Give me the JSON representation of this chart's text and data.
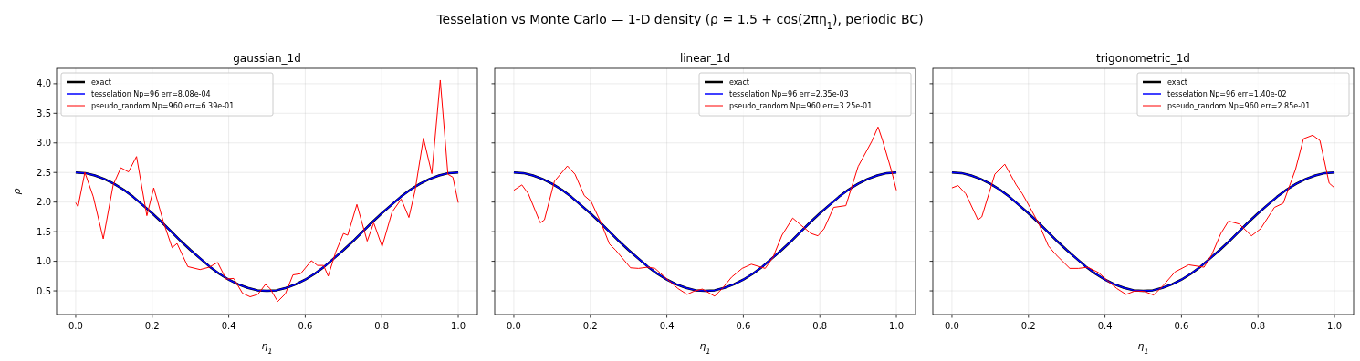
{
  "chart_data": [
    {
      "type": "line",
      "title": "gaussian_1d",
      "annotations": [
        "Tesselation vs Monte Carlo — 1-D density  (ρ = 1.5 + cos(2πη$_{1}$), periodic BC)"
      ],
      "xlabel": "η$_{1}$",
      "ylabel": "ρ",
      "xlim": [
        -0.05,
        1.05
      ],
      "ylim": [
        0.1,
        4.26
      ],
      "xticks": [
        {
          "value": 0,
          "label": "0.0"
        },
        {
          "value": 0.2,
          "label": "0.2"
        },
        {
          "value": 0.4,
          "label": "0.4"
        },
        {
          "value": 0.6,
          "label": "0.6"
        },
        {
          "value": 0.8,
          "label": "0.8"
        },
        {
          "value": 1,
          "label": "1.0"
        }
      ],
      "yticks": [
        0.5,
        {
          "value": 1,
          "label": "1.0"
        },
        1.5,
        {
          "value": 2,
          "label": "2.0"
        },
        2.5,
        {
          "value": 3,
          "label": "3.0"
        },
        3.5,
        {
          "value": 4,
          "label": "4.0"
        }
      ],
      "grid": true,
      "legend": "top left",
      "series": [
        {
          "name": "exact",
          "color": "#000000",
          "x": [
            0,
            0.025,
            0.05,
            0.075,
            0.1,
            0.125,
            0.15,
            0.175,
            0.2,
            0.225,
            0.25,
            0.275,
            0.3,
            0.325,
            0.35,
            0.375,
            0.4,
            0.425,
            0.45,
            0.475,
            0.5,
            0.525,
            0.55,
            0.575,
            0.6,
            0.625,
            0.65,
            0.675,
            0.7,
            0.725,
            0.75,
            0.775,
            0.8,
            0.825,
            0.85,
            0.875,
            0.9,
            0.925,
            0.95,
            0.975,
            1
          ],
          "values": [
            2.5,
            2.49,
            2.45,
            2.39,
            2.31,
            2.21,
            2.09,
            1.95,
            1.81,
            1.66,
            1.5,
            1.34,
            1.19,
            1.05,
            0.91,
            0.79,
            0.69,
            0.61,
            0.55,
            0.51,
            0.5,
            0.51,
            0.55,
            0.61,
            0.69,
            0.79,
            0.91,
            1.05,
            1.19,
            1.34,
            1.5,
            1.66,
            1.81,
            1.95,
            2.09,
            2.21,
            2.31,
            2.39,
            2.45,
            2.49,
            2.5
          ]
        },
        {
          "name": "tesselation  Np=96  err=8.08e-04",
          "color": "#0000ff",
          "x": [
            0,
            0.025,
            0.05,
            0.075,
            0.1,
            0.125,
            0.15,
            0.175,
            0.2,
            0.225,
            0.25,
            0.275,
            0.3,
            0.325,
            0.35,
            0.375,
            0.4,
            0.425,
            0.45,
            0.475,
            0.5,
            0.525,
            0.55,
            0.575,
            0.6,
            0.625,
            0.65,
            0.675,
            0.7,
            0.725,
            0.75,
            0.775,
            0.8,
            0.825,
            0.85,
            0.875,
            0.9,
            0.925,
            0.95,
            0.975,
            1
          ],
          "values": [
            2.5,
            2.49,
            2.45,
            2.39,
            2.31,
            2.21,
            2.09,
            1.95,
            1.81,
            1.66,
            1.5,
            1.34,
            1.19,
            1.05,
            0.91,
            0.79,
            0.69,
            0.61,
            0.55,
            0.51,
            0.5,
            0.51,
            0.55,
            0.61,
            0.69,
            0.79,
            0.91,
            1.05,
            1.19,
            1.34,
            1.5,
            1.66,
            1.81,
            1.95,
            2.09,
            2.21,
            2.31,
            2.39,
            2.45,
            2.49,
            2.5
          ]
        },
        {
          "name": "pseudo_random  Np=960  err=6.39e-01",
          "color": "#ff0000",
          "x": [
            0,
            0.006,
            0.024,
            0.046,
            0.072,
            0.098,
            0.118,
            0.138,
            0.159,
            0.186,
            0.204,
            0.23,
            0.252,
            0.265,
            0.293,
            0.325,
            0.349,
            0.371,
            0.393,
            0.413,
            0.436,
            0.456,
            0.476,
            0.496,
            0.508,
            0.528,
            0.548,
            0.568,
            0.588,
            0.616,
            0.632,
            0.648,
            0.66,
            0.68,
            0.7,
            0.711,
            0.735,
            0.762,
            0.779,
            0.801,
            0.827,
            0.851,
            0.871,
            0.887,
            0.909,
            0.931,
            0.953,
            0.973,
            0.986,
            1
          ],
          "values": [
            1.99,
            1.92,
            2.5,
            2.09,
            1.38,
            2.29,
            2.58,
            2.51,
            2.77,
            1.77,
            2.24,
            1.65,
            1.23,
            1.3,
            0.91,
            0.86,
            0.9,
            0.98,
            0.7,
            0.71,
            0.46,
            0.4,
            0.44,
            0.61,
            0.54,
            0.32,
            0.45,
            0.77,
            0.79,
            1.01,
            0.93,
            0.93,
            0.75,
            1.16,
            1.47,
            1.44,
            1.96,
            1.34,
            1.65,
            1.25,
            1.83,
            2.05,
            1.74,
            2.19,
            3.08,
            2.48,
            4.06,
            2.47,
            2.42,
            1.99
          ]
        }
      ]
    },
    {
      "type": "line",
      "title": "linear_1d",
      "xlabel": "η$_{1}$",
      "xlim": [
        -0.05,
        1.05
      ],
      "ylim": [
        0.1,
        4.26
      ],
      "tick_labels": "x",
      "xticks": [
        {
          "value": 0,
          "label": "0.0"
        },
        {
          "value": 0.2,
          "label": "0.2"
        },
        {
          "value": 0.4,
          "label": "0.4"
        },
        {
          "value": 0.6,
          "label": "0.6"
        },
        {
          "value": 0.8,
          "label": "0.8"
        },
        {
          "value": 1,
          "label": "1.0"
        }
      ],
      "yticks": [
        {
          "value": 0.5,
          "label": null
        },
        {
          "value": 1,
          "label": null
        },
        {
          "value": 1.5,
          "label": null
        },
        {
          "value": 2,
          "label": null
        },
        {
          "value": 2.5,
          "label": null
        },
        {
          "value": 3,
          "label": null
        },
        {
          "value": 3.5,
          "label": null
        },
        {
          "value": 4,
          "label": null
        }
      ],
      "grid": true,
      "legend": "top right",
      "series": [
        {
          "name": "exact",
          "color": "#000000",
          "x": [
            0,
            0.025,
            0.05,
            0.075,
            0.1,
            0.125,
            0.15,
            0.175,
            0.2,
            0.225,
            0.25,
            0.275,
            0.3,
            0.325,
            0.35,
            0.375,
            0.4,
            0.425,
            0.45,
            0.475,
            0.5,
            0.525,
            0.55,
            0.575,
            0.6,
            0.625,
            0.65,
            0.675,
            0.7,
            0.725,
            0.75,
            0.775,
            0.8,
            0.825,
            0.85,
            0.875,
            0.9,
            0.925,
            0.95,
            0.975,
            1
          ],
          "values": [
            2.5,
            2.49,
            2.45,
            2.39,
            2.31,
            2.21,
            2.09,
            1.95,
            1.81,
            1.66,
            1.5,
            1.34,
            1.19,
            1.05,
            0.91,
            0.79,
            0.69,
            0.61,
            0.55,
            0.51,
            0.5,
            0.51,
            0.55,
            0.61,
            0.69,
            0.79,
            0.91,
            1.05,
            1.19,
            1.34,
            1.5,
            1.66,
            1.81,
            1.95,
            2.09,
            2.21,
            2.31,
            2.39,
            2.45,
            2.49,
            2.5
          ]
        },
        {
          "name": "tesselation  Np=96  err=2.35e-03",
          "color": "#0000ff",
          "x": [
            0,
            0.025,
            0.05,
            0.075,
            0.1,
            0.125,
            0.15,
            0.175,
            0.2,
            0.225,
            0.25,
            0.275,
            0.3,
            0.325,
            0.35,
            0.375,
            0.4,
            0.425,
            0.45,
            0.475,
            0.5,
            0.525,
            0.55,
            0.575,
            0.6,
            0.625,
            0.65,
            0.675,
            0.7,
            0.725,
            0.75,
            0.775,
            0.8,
            0.825,
            0.85,
            0.875,
            0.9,
            0.925,
            0.95,
            0.975,
            1
          ],
          "values": [
            2.5,
            2.49,
            2.45,
            2.39,
            2.31,
            2.21,
            2.09,
            1.95,
            1.81,
            1.66,
            1.5,
            1.34,
            1.19,
            1.05,
            0.91,
            0.79,
            0.69,
            0.61,
            0.55,
            0.51,
            0.5,
            0.51,
            0.55,
            0.61,
            0.69,
            0.79,
            0.91,
            1.05,
            1.19,
            1.34,
            1.5,
            1.66,
            1.81,
            1.95,
            2.09,
            2.21,
            2.31,
            2.39,
            2.45,
            2.49,
            2.5
          ]
        },
        {
          "name": "pseudo_random  Np=960  err=3.25e-01",
          "color": "#ff0000",
          "x": [
            0,
            0.021,
            0.038,
            0.069,
            0.08,
            0.106,
            0.14,
            0.16,
            0.184,
            0.202,
            0.23,
            0.25,
            0.266,
            0.305,
            0.326,
            0.35,
            0.369,
            0.397,
            0.429,
            0.453,
            0.473,
            0.493,
            0.525,
            0.545,
            0.569,
            0.597,
            0.621,
            0.657,
            0.677,
            0.701,
            0.729,
            0.749,
            0.777,
            0.795,
            0.811,
            0.836,
            0.868,
            0.9,
            0.936,
            0.952,
            0.964,
            0.988,
            1
          ],
          "values": [
            2.2,
            2.29,
            2.14,
            1.65,
            1.7,
            2.35,
            2.61,
            2.47,
            2.11,
            2.01,
            1.62,
            1.29,
            1.19,
            0.89,
            0.88,
            0.9,
            0.88,
            0.72,
            0.54,
            0.44,
            0.5,
            0.53,
            0.41,
            0.54,
            0.73,
            0.88,
            0.95,
            0.88,
            1.06,
            1.44,
            1.73,
            1.62,
            1.47,
            1.43,
            1.55,
            1.91,
            1.94,
            2.6,
            3.03,
            3.27,
            3.04,
            2.51,
            2.2
          ]
        }
      ]
    },
    {
      "type": "line",
      "title": "trigonometric_1d",
      "xlabel": "η$_{1}$",
      "xlim": [
        -0.05,
        1.05
      ],
      "ylim": [
        0.1,
        4.26
      ],
      "tick_labels": "x",
      "xticks": [
        {
          "value": 0,
          "label": "0.0"
        },
        {
          "value": 0.2,
          "label": "0.2"
        },
        {
          "value": 0.4,
          "label": "0.4"
        },
        {
          "value": 0.6,
          "label": "0.6"
        },
        {
          "value": 0.8,
          "label": "0.8"
        },
        {
          "value": 1,
          "label": "1.0"
        }
      ],
      "yticks": [
        {
          "value": 0.5,
          "label": null
        },
        {
          "value": 1,
          "label": null
        },
        {
          "value": 1.5,
          "label": null
        },
        {
          "value": 2,
          "label": null
        },
        {
          "value": 2.5,
          "label": null
        },
        {
          "value": 3,
          "label": null
        },
        {
          "value": 3.5,
          "label": null
        },
        {
          "value": 4,
          "label": null
        }
      ],
      "grid": true,
      "legend": "top right",
      "series": [
        {
          "name": "exact",
          "color": "#000000",
          "x": [
            0,
            0.025,
            0.05,
            0.075,
            0.1,
            0.125,
            0.15,
            0.175,
            0.2,
            0.225,
            0.25,
            0.275,
            0.3,
            0.325,
            0.35,
            0.375,
            0.4,
            0.425,
            0.45,
            0.475,
            0.5,
            0.525,
            0.55,
            0.575,
            0.6,
            0.625,
            0.65,
            0.675,
            0.7,
            0.725,
            0.75,
            0.775,
            0.8,
            0.825,
            0.85,
            0.875,
            0.9,
            0.925,
            0.95,
            0.975,
            1
          ],
          "values": [
            2.5,
            2.49,
            2.45,
            2.39,
            2.31,
            2.21,
            2.09,
            1.95,
            1.81,
            1.66,
            1.5,
            1.34,
            1.19,
            1.05,
            0.91,
            0.79,
            0.69,
            0.61,
            0.55,
            0.51,
            0.5,
            0.51,
            0.55,
            0.61,
            0.69,
            0.79,
            0.91,
            1.05,
            1.19,
            1.34,
            1.5,
            1.66,
            1.81,
            1.95,
            2.09,
            2.21,
            2.31,
            2.39,
            2.45,
            2.49,
            2.5
          ]
        },
        {
          "name": "tesselation  Np=96  err=1.40e-02",
          "color": "#0000ff",
          "x": [
            0,
            0.025,
            0.05,
            0.075,
            0.1,
            0.125,
            0.15,
            0.175,
            0.2,
            0.225,
            0.25,
            0.275,
            0.3,
            0.325,
            0.35,
            0.375,
            0.4,
            0.425,
            0.45,
            0.475,
            0.5,
            0.525,
            0.55,
            0.575,
            0.6,
            0.625,
            0.65,
            0.675,
            0.7,
            0.725,
            0.75,
            0.775,
            0.8,
            0.825,
            0.85,
            0.875,
            0.9,
            0.925,
            0.95,
            0.975,
            1
          ],
          "values": [
            2.5,
            2.49,
            2.45,
            2.39,
            2.31,
            2.21,
            2.09,
            1.95,
            1.81,
            1.66,
            1.5,
            1.34,
            1.19,
            1.05,
            0.91,
            0.79,
            0.69,
            0.61,
            0.55,
            0.51,
            0.5,
            0.51,
            0.55,
            0.61,
            0.69,
            0.79,
            0.91,
            1.05,
            1.19,
            1.34,
            1.5,
            1.66,
            1.81,
            1.95,
            2.09,
            2.21,
            2.31,
            2.39,
            2.45,
            2.49,
            2.5
          ]
        },
        {
          "name": "pseudo_random  Np=960  err=2.85e-01",
          "color": "#ff0000",
          "x": [
            0,
            0.016,
            0.036,
            0.068,
            0.078,
            0.112,
            0.138,
            0.168,
            0.184,
            0.204,
            0.228,
            0.252,
            0.272,
            0.308,
            0.331,
            0.355,
            0.383,
            0.407,
            0.431,
            0.455,
            0.479,
            0.503,
            0.527,
            0.551,
            0.583,
            0.619,
            0.659,
            0.679,
            0.703,
            0.723,
            0.751,
            0.783,
            0.807,
            0.843,
            0.866,
            0.898,
            0.919,
            0.943,
            0.962,
            0.986,
            1
          ],
          "values": [
            2.24,
            2.28,
            2.14,
            1.7,
            1.75,
            2.47,
            2.64,
            2.29,
            2.14,
            1.91,
            1.62,
            1.26,
            1.11,
            0.88,
            0.88,
            0.9,
            0.81,
            0.67,
            0.54,
            0.44,
            0.5,
            0.49,
            0.43,
            0.58,
            0.82,
            0.94,
            0.9,
            1.11,
            1.47,
            1.68,
            1.63,
            1.43,
            1.55,
            1.91,
            1.98,
            2.55,
            3.07,
            3.13,
            3.04,
            2.32,
            2.24
          ]
        }
      ]
    }
  ]
}
